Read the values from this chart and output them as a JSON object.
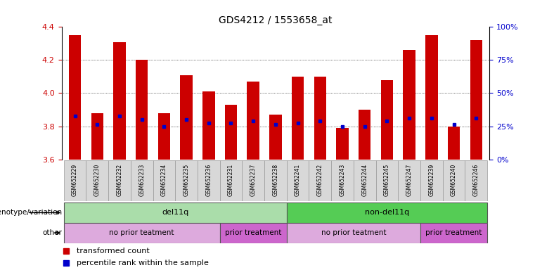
{
  "title": "GDS4212 / 1553658_at",
  "samples": [
    "GSM652229",
    "GSM652230",
    "GSM652232",
    "GSM652233",
    "GSM652234",
    "GSM652235",
    "GSM652236",
    "GSM652231",
    "GSM652237",
    "GSM652238",
    "GSM652241",
    "GSM652242",
    "GSM652243",
    "GSM652244",
    "GSM652245",
    "GSM652247",
    "GSM652239",
    "GSM652240",
    "GSM652246"
  ],
  "bar_heights": [
    4.35,
    3.88,
    4.31,
    4.2,
    3.88,
    4.11,
    4.01,
    3.93,
    4.07,
    3.87,
    4.1,
    4.1,
    3.79,
    3.9,
    4.08,
    4.26,
    4.35,
    3.8,
    4.32
  ],
  "blue_dot_y": [
    3.86,
    3.81,
    3.86,
    3.84,
    3.8,
    3.84,
    3.82,
    3.82,
    3.83,
    3.81,
    3.82,
    3.83,
    3.8,
    3.8,
    3.83,
    3.85,
    3.85,
    3.81,
    3.85
  ],
  "ylim_left": [
    3.6,
    4.4
  ],
  "ylim_right": [
    0,
    100
  ],
  "yticks_left": [
    3.6,
    3.8,
    4.0,
    4.2,
    4.4
  ],
  "yticks_right": [
    0,
    25,
    50,
    75,
    100
  ],
  "ytick_labels_right": [
    "0%",
    "25%",
    "50%",
    "75%",
    "100%"
  ],
  "bar_color": "#cc0000",
  "dot_color": "#0000cc",
  "background_color": "#ffffff",
  "genotype_groups": [
    {
      "label": "del11q",
      "start": 0,
      "end": 10,
      "color": "#aaddaa"
    },
    {
      "label": "non-del11q",
      "start": 10,
      "end": 19,
      "color": "#55cc55"
    }
  ],
  "treatment_groups": [
    {
      "label": "no prior teatment",
      "start": 0,
      "end": 7,
      "color": "#ddaadd"
    },
    {
      "label": "prior treatment",
      "start": 7,
      "end": 10,
      "color": "#cc66cc"
    },
    {
      "label": "no prior teatment",
      "start": 10,
      "end": 16,
      "color": "#ddaadd"
    },
    {
      "label": "prior treatment",
      "start": 16,
      "end": 19,
      "color": "#cc66cc"
    }
  ],
  "legend_red_label": "transformed count",
  "legend_blue_label": "percentile rank within the sample",
  "left_label_genotype": "genotype/variation",
  "left_label_other": "other"
}
